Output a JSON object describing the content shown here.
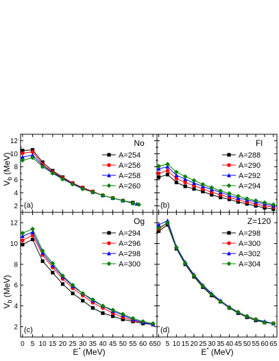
{
  "chart_data": [
    {
      "type": "line",
      "panel_label": "(a)",
      "title": "No",
      "xlabel": "E* (MeV)",
      "ylabel": "V_b (MeV)",
      "xlim": [
        -1,
        67
      ],
      "ylim": [
        1,
        13
      ],
      "xticks": [
        0,
        5,
        10,
        15,
        20,
        25,
        30,
        35,
        40,
        45,
        50,
        55,
        60,
        65
      ],
      "yticks": [
        2,
        4,
        6,
        8,
        10,
        12
      ],
      "legend_position": "top-right",
      "grid": false,
      "series": [
        {
          "name": "A=254",
          "color": "#000000",
          "marker": "square",
          "x": [
            0,
            5,
            10,
            15,
            20,
            25,
            30,
            35,
            40,
            45,
            50,
            55
          ],
          "y": [
            10.5,
            10.6,
            8.7,
            7.4,
            6.4,
            5.5,
            4.8,
            4.2,
            3.6,
            3.2,
            2.8,
            2.5
          ]
        },
        {
          "name": "A=256",
          "color": "#ff0000",
          "marker": "circle",
          "x": [
            0,
            5,
            10,
            15,
            20,
            25,
            30,
            35,
            40,
            45,
            50,
            55
          ],
          "y": [
            10.1,
            10.3,
            8.4,
            7.2,
            6.3,
            5.5,
            4.8,
            4.2,
            3.6,
            3.2,
            2.8,
            2.4
          ]
        },
        {
          "name": "A=258",
          "color": "#0000ff",
          "marker": "triangle",
          "x": [
            0,
            5,
            10,
            15,
            20,
            25,
            30,
            35,
            40,
            45,
            50,
            55,
            57
          ],
          "y": [
            9.5,
            9.8,
            8.2,
            7.1,
            6.2,
            5.4,
            4.7,
            4.1,
            3.6,
            3.2,
            2.8,
            2.4,
            2.3
          ]
        },
        {
          "name": "A=260",
          "color": "#008000",
          "marker": "diamond",
          "x": [
            0,
            5,
            10,
            15,
            20,
            25,
            30,
            35,
            40,
            45,
            50,
            55,
            58
          ],
          "y": [
            9.0,
            9.4,
            8.0,
            7.0,
            6.1,
            5.3,
            4.6,
            4.1,
            3.6,
            3.2,
            2.8,
            2.4,
            2.2
          ]
        }
      ]
    },
    {
      "type": "line",
      "panel_label": "(b)",
      "title": "Fl",
      "xlabel": "E* (MeV)",
      "ylabel": "",
      "xlim": [
        -1,
        67
      ],
      "ylim": [
        1,
        13
      ],
      "xticks": [
        0,
        5,
        10,
        15,
        20,
        25,
        30,
        35,
        40,
        45,
        50,
        55,
        60,
        65
      ],
      "yticks": [
        2,
        4,
        6,
        8,
        10,
        12
      ],
      "legend_position": "top-right",
      "grid": false,
      "series": [
        {
          "name": "A=288",
          "color": "#000000",
          "marker": "square",
          "x": [
            0,
            5,
            10,
            15,
            20,
            25,
            30,
            35,
            40,
            45,
            50,
            55,
            60,
            65
          ],
          "y": [
            6.4,
            6.8,
            5.6,
            5.0,
            4.6,
            4.2,
            3.7,
            3.3,
            3.0,
            2.6,
            2.3,
            2.0,
            1.7,
            1.5
          ]
        },
        {
          "name": "A=290",
          "color": "#ff0000",
          "marker": "circle",
          "x": [
            0,
            5,
            10,
            15,
            20,
            25,
            30,
            35,
            40,
            45,
            50,
            55,
            60,
            65
          ],
          "y": [
            7.0,
            7.4,
            6.2,
            5.6,
            5.1,
            4.6,
            4.1,
            3.7,
            3.3,
            2.9,
            2.6,
            2.3,
            2.0,
            1.8
          ]
        },
        {
          "name": "A=292",
          "color": "#0000ff",
          "marker": "triangle",
          "x": [
            0,
            5,
            10,
            15,
            20,
            25,
            30,
            35,
            40,
            45,
            50,
            55,
            60,
            65
          ],
          "y": [
            7.7,
            8.0,
            6.7,
            6.1,
            5.5,
            5.0,
            4.5,
            4.1,
            3.6,
            3.2,
            2.9,
            2.6,
            2.3,
            2.0
          ]
        },
        {
          "name": "A=294",
          "color": "#008000",
          "marker": "diamond",
          "x": [
            0,
            5,
            10,
            15,
            20,
            25,
            30,
            35,
            40,
            45,
            50,
            55,
            60,
            65
          ],
          "y": [
            8.1,
            8.4,
            7.2,
            6.5,
            5.9,
            5.3,
            4.8,
            4.3,
            3.9,
            3.5,
            3.1,
            2.8,
            2.5,
            2.2
          ]
        }
      ]
    },
    {
      "type": "line",
      "panel_label": "(c)",
      "title": "Og",
      "xlabel": "E* (MeV)",
      "ylabel": "V_b (MeV)",
      "xlim": [
        -1,
        67
      ],
      "ylim": [
        1,
        13
      ],
      "xticks": [
        0,
        5,
        10,
        15,
        20,
        25,
        30,
        35,
        40,
        45,
        50,
        55,
        60,
        65
      ],
      "yticks": [
        2,
        4,
        6,
        8,
        10,
        12
      ],
      "legend_position": "top-right",
      "grid": false,
      "series": [
        {
          "name": "A=294",
          "color": "#000000",
          "marker": "square",
          "x": [
            0,
            5,
            10,
            15,
            20,
            25,
            30,
            35,
            40,
            45,
            50,
            55,
            60,
            65
          ],
          "y": [
            9.9,
            10.4,
            8.3,
            7.2,
            6.1,
            5.2,
            4.5,
            3.8,
            3.3,
            3.0,
            2.7,
            2.5,
            2.3,
            2.2
          ]
        },
        {
          "name": "A=296",
          "color": "#ff0000",
          "marker": "circle",
          "x": [
            0,
            5,
            10,
            15,
            20,
            25,
            30,
            35,
            40,
            45,
            50,
            55,
            60,
            65
          ],
          "y": [
            10.3,
            10.8,
            8.9,
            7.7,
            6.6,
            5.7,
            5.0,
            4.3,
            3.8,
            3.3,
            2.9,
            2.6,
            2.4,
            2.2
          ]
        },
        {
          "name": "A=298",
          "color": "#0000ff",
          "marker": "triangle",
          "x": [
            0,
            5,
            10,
            15,
            20,
            25,
            30,
            35,
            40,
            45,
            50,
            55,
            60,
            65
          ],
          "y": [
            10.7,
            11.1,
            9.1,
            7.9,
            6.8,
            5.9,
            5.2,
            4.5,
            4.0,
            3.5,
            3.1,
            2.7,
            2.4,
            2.2
          ]
        },
        {
          "name": "A=300",
          "color": "#008000",
          "marker": "diamond",
          "x": [
            0,
            5,
            10,
            15,
            20,
            25,
            30,
            35,
            40,
            45,
            50,
            55,
            60,
            65
          ],
          "y": [
            11.0,
            11.4,
            9.3,
            8.1,
            6.9,
            6.0,
            5.2,
            4.6,
            4.0,
            3.6,
            3.2,
            2.8,
            2.5,
            2.3
          ]
        }
      ]
    },
    {
      "type": "line",
      "panel_label": "(d)",
      "title": "Z=120",
      "xlabel": "E* (MeV)",
      "ylabel": "",
      "xlim": [
        -1,
        67
      ],
      "ylim": [
        1,
        13
      ],
      "xticks": [
        0,
        5,
        10,
        15,
        20,
        25,
        30,
        35,
        40,
        45,
        50,
        55,
        60,
        65
      ],
      "yticks": [
        2,
        4,
        6,
        8,
        10,
        12
      ],
      "legend_position": "top-right",
      "grid": false,
      "series": [
        {
          "name": "A=298",
          "color": "#000000",
          "marker": "square",
          "x": [
            0,
            5,
            10,
            15,
            20,
            25,
            30,
            35,
            40,
            45,
            50,
            55,
            60,
            65
          ],
          "y": [
            11.2,
            11.8,
            9.5,
            8.0,
            6.8,
            5.8,
            5.0,
            4.4,
            3.8,
            3.3,
            2.9,
            2.6,
            2.4,
            2.3
          ]
        },
        {
          "name": "A=300",
          "color": "#ff0000",
          "marker": "circle",
          "x": [
            0,
            5,
            10,
            15,
            20,
            25,
            30,
            35,
            40,
            45,
            50,
            55,
            60,
            65
          ],
          "y": [
            11.4,
            12.0,
            9.6,
            8.1,
            6.9,
            5.9,
            5.1,
            4.4,
            3.8,
            3.4,
            3.0,
            2.7,
            2.4,
            2.3
          ]
        },
        {
          "name": "A=302",
          "color": "#0000ff",
          "marker": "triangle",
          "x": [
            0,
            5,
            10,
            15,
            20,
            25,
            30,
            35,
            40,
            45,
            50,
            55,
            60,
            65
          ],
          "y": [
            11.8,
            12.2,
            9.7,
            8.2,
            7.0,
            6.0,
            5.2,
            4.5,
            3.9,
            3.4,
            3.0,
            2.7,
            2.5,
            2.3
          ]
        },
        {
          "name": "A=304",
          "color": "#008000",
          "marker": "diamond",
          "x": [
            0,
            5,
            10,
            15,
            20,
            25,
            30,
            35,
            40,
            45,
            50,
            55,
            60,
            65
          ],
          "y": [
            11.5,
            12.0,
            9.6,
            8.1,
            6.9,
            5.9,
            5.1,
            4.4,
            3.8,
            3.4,
            3.0,
            2.7,
            2.4,
            2.3
          ]
        }
      ]
    }
  ]
}
